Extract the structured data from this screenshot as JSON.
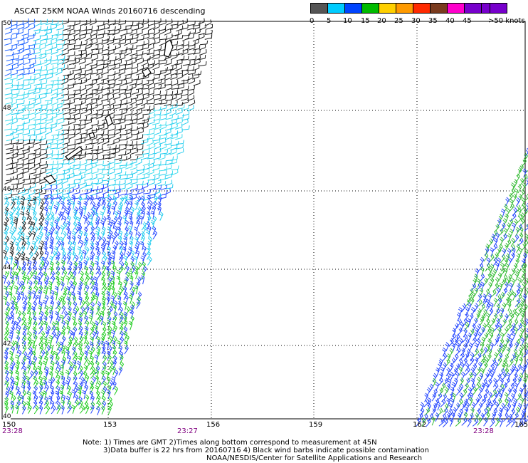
{
  "title": "ASCAT 25KM NOAA Winds 20160716 descending",
  "legend": {
    "colors": [
      "#555555",
      "#999999",
      "#00aaff",
      "#0055ff",
      "#0000cc",
      "#00cc00",
      "#ffd400",
      "#ff9900",
      "#ff3300",
      "#dd0000",
      "#7a3b1e",
      "#cc77aa",
      "#ff00ff",
      "#aa00ff",
      "#660099"
    ],
    "labels": [
      "0",
      "5",
      "10",
      "15",
      "20",
      "25",
      "30",
      "35",
      "40",
      "45",
      ">50 knots"
    ]
  },
  "map": {
    "lat_labels": [
      "50",
      "48",
      "46",
      "44",
      "42",
      "40"
    ],
    "lon_labels": [
      "150",
      "153",
      "156",
      "159",
      "162",
      "165"
    ],
    "time_labels": [
      "23:28",
      "23:27",
      "23:28"
    ]
  },
  "notes": [
    "Note: 1) Times are GMT 2)Times along bottom correspond to measurement at 45N",
    "3)Data buffer is 22 hrs from 20160716 4) Black wind barbs indicate possible contamination",
    "NOAA/NESDIS/Center for Satellite Applications and Research"
  ]
}
